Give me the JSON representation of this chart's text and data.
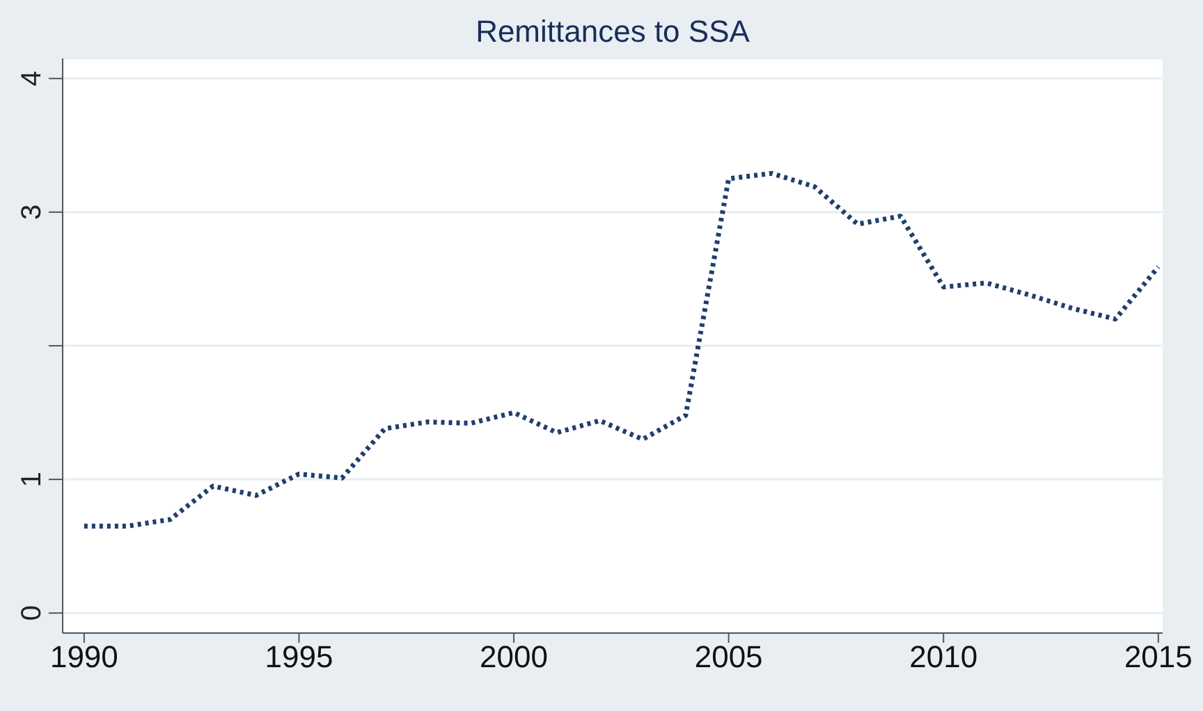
{
  "chart_data": {
    "type": "line",
    "title": "Remittances to SSA",
    "x": [
      1990,
      1991,
      1992,
      1993,
      1994,
      1995,
      1996,
      1997,
      1998,
      1999,
      2000,
      2001,
      2002,
      2003,
      2004,
      2005,
      2006,
      2007,
      2008,
      2009,
      2010,
      2011,
      2012,
      2013,
      2014,
      2015
    ],
    "series": [
      {
        "color": "#1f3f6e",
        "values": [
          0.65,
          0.65,
          0.7,
          0.95,
          0.88,
          1.04,
          1.01,
          1.38,
          1.43,
          1.42,
          1.5,
          1.35,
          1.44,
          1.3,
          1.48,
          3.25,
          3.29,
          3.19,
          2.91,
          2.97,
          2.44,
          2.47,
          2.38,
          2.28,
          2.2,
          2.59
        ]
      }
    ],
    "xlim": [
      1989.5,
      2015.1
    ],
    "xticks": [
      1990,
      1995,
      2000,
      2005,
      2010,
      2015
    ],
    "ylim": [
      -0.15,
      4.15
    ],
    "yticks": [
      0,
      1,
      {
        "value": 2,
        "label": null
      },
      3,
      4
    ],
    "grid": "y",
    "legend": false,
    "marker": "none",
    "line_style": "dotted"
  }
}
